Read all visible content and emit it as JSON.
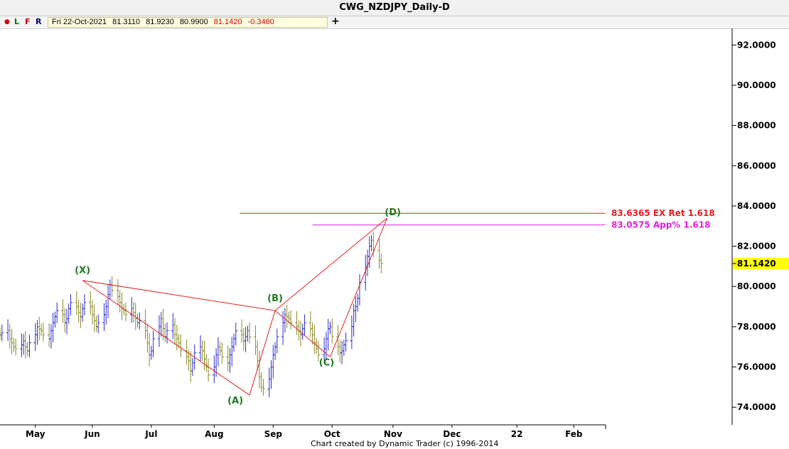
{
  "window": {
    "title": "CWG_NZDJPY_Daily-D"
  },
  "toolbar": {
    "bullet": "●",
    "l": "L",
    "f": "F",
    "r": "R",
    "plus": "+",
    "info": {
      "date": "Fri 22-Oct-2021",
      "open": "81.3110",
      "high": "81.9230",
      "low": "80.9900",
      "close": "81.1420",
      "change": "-0.3480"
    }
  },
  "colors": {
    "up_bar": "#2b2bd0",
    "down_bar": "#8a8a2a",
    "pattern_line": "#e02020",
    "ex_ret_line": "#e02020",
    "app_line": "#e020e0",
    "label_green": "#1f7a1f",
    "current_price_bg": "#ffff00"
  },
  "footer": {
    "text": "Chart created by Dynamic Trader  (c)  1996-2014"
  },
  "chart_data": {
    "type": "bar",
    "title": "CWG_NZDJPY_Daily-D",
    "x_axis": {
      "tick_labels": [
        "May",
        "Jun",
        "Jul",
        "Aug",
        "Sep",
        "Oct",
        "Nov",
        "Dec",
        "22",
        "Feb"
      ],
      "tick_dates": [
        "2021-05-03",
        "2021-06-01",
        "2021-07-01",
        "2021-08-02",
        "2021-09-01",
        "2021-10-01",
        "2021-11-01",
        "2021-12-01",
        "2022-01-03",
        "2022-02-01"
      ],
      "range": [
        "2021-04-15",
        "2022-02-15"
      ]
    },
    "y_axis": {
      "tick_labels": [
        "92.0000",
        "90.0000",
        "88.0000",
        "86.0000",
        "84.0000",
        "82.0000",
        "80.0000",
        "78.0000",
        "76.0000",
        "74.0000"
      ],
      "ylim": [
        73.0,
        93.0
      ],
      "position": "right"
    },
    "current_price": {
      "label": "81.1420",
      "value": 81.142
    },
    "horizontal_lines": [
      {
        "label": "83.6365 EX Ret 1.618",
        "value": 83.6365,
        "color": "#e02020",
        "from_date": "2021-08-15"
      },
      {
        "label": "83.0575 App% 1.618",
        "value": 83.0575,
        "color": "#e020e0",
        "from_date": "2021-09-21"
      }
    ],
    "pattern_points": [
      {
        "label": "(X)",
        "date": "2021-05-27",
        "value": 80.3
      },
      {
        "label": "(A)",
        "date": "2021-08-20",
        "value": 74.6
      },
      {
        "label": "(B)",
        "date": "2021-09-02",
        "value": 78.8
      },
      {
        "label": "(C)",
        "date": "2021-09-30",
        "value": 76.5
      },
      {
        "label": "(D)",
        "date": "2021-10-29",
        "value": 83.4
      }
    ],
    "pattern_segments": [
      [
        "(X)",
        "(A)"
      ],
      [
        "(X)",
        "(B)"
      ],
      [
        "(A)",
        "(B)"
      ],
      [
        "(B)",
        "(C)"
      ],
      [
        "(B)",
        "(D)"
      ],
      [
        "(C)",
        "(D)"
      ]
    ],
    "closes": [
      77.6,
      77.7,
      77.8,
      77.4,
      77.2,
      77.0,
      76.9,
      77.1,
      77.3,
      77.0,
      76.8,
      77.2,
      77.6,
      78.0,
      77.9,
      77.8,
      77.6,
      77.4,
      77.8,
      78.2,
      78.5,
      78.8,
      78.6,
      78.2,
      78.4,
      78.9,
      79.2,
      79.0,
      78.7,
      78.5,
      78.9,
      79.2,
      79.0,
      78.6,
      78.3,
      78.0,
      78.2,
      78.6,
      79.0,
      79.6,
      80.1,
      79.8,
      79.5,
      79.2,
      78.9,
      78.8,
      78.6,
      78.9,
      78.7,
      78.4,
      78.2,
      78.3,
      77.8,
      77.2,
      76.6,
      76.8,
      77.4,
      78.0,
      78.4,
      77.9,
      77.5,
      77.8,
      78.1,
      77.6,
      77.4,
      77.2,
      76.8,
      76.5,
      76.3,
      75.8,
      76.2,
      76.7,
      77.0,
      76.8,
      76.4,
      76.0,
      75.6,
      76.0,
      76.6,
      77.0,
      76.8,
      76.5,
      76.2,
      76.6,
      77.0,
      77.4,
      77.8,
      77.6,
      77.3,
      77.5,
      77.8,
      77.5,
      77.0,
      76.3,
      75.5,
      75.0,
      74.9,
      75.4,
      76.0,
      76.6,
      77.0,
      77.5,
      78.2,
      78.6,
      78.5,
      78.4,
      78.2,
      78.0,
      77.8,
      77.6,
      77.9,
      78.2,
      77.9,
      77.6,
      77.2,
      76.9,
      76.6,
      76.9,
      77.4,
      77.9,
      78.0,
      77.5,
      77.0,
      76.7,
      76.8,
      77.1,
      77.3,
      78.0,
      78.8,
      79.0,
      79.4,
      80.2,
      81.0,
      81.5,
      82.0,
      82.3,
      81.8,
      81.3,
      81.142
    ],
    "series_start_date": "2021-04-15"
  }
}
